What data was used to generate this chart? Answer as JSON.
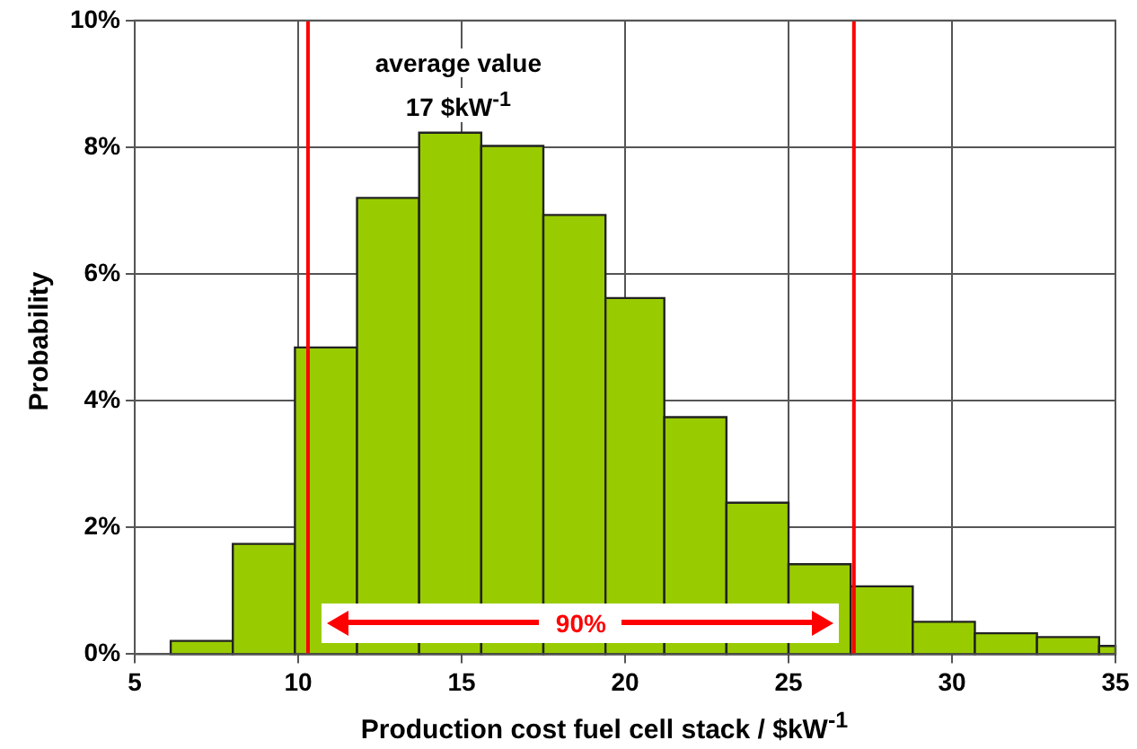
{
  "chart_data": {
    "type": "histogram",
    "xlabel": "Production cost fuel cell stack / $kW$^{-1}$",
    "ylabel": "Probability",
    "bins": [
      6.1,
      8.0,
      9.9,
      11.8,
      13.7,
      15.6,
      17.5,
      19.4,
      21.2,
      23.1,
      25.0,
      26.9,
      28.8,
      30.7,
      32.6,
      34.5,
      35
    ],
    "values": [
      0.21,
      1.74,
      4.84,
      7.2,
      8.23,
      8.02,
      6.93,
      5.62,
      3.74,
      2.39,
      1.42,
      1.07,
      0.51,
      0.33,
      0.27,
      0.13
    ],
    "color": "#99cc00",
    "xlim": [
      5,
      35
    ],
    "xticks": [
      5,
      10,
      15,
      20,
      25,
      30,
      35
    ],
    "ylim": [
      0,
      10
    ],
    "yticks": [
      {
        "value": 0,
        "label": "0%"
      },
      {
        "value": 2,
        "label": "2%"
      },
      {
        "value": 4,
        "label": "4%"
      },
      {
        "value": 6,
        "label": "6%"
      },
      {
        "value": 8,
        "label": "8%"
      },
      {
        "value": 10,
        "label": "10%"
      }
    ],
    "grid": true,
    "ref_lines": [
      {
        "axis": "x",
        "value": 10.3,
        "color": "#ff0000"
      },
      {
        "axis": "x",
        "value": 27.0,
        "color": "#ff0000"
      }
    ],
    "annotations": [
      "average value",
      "17 $kW$^{-1}$",
      "90%"
    ]
  }
}
